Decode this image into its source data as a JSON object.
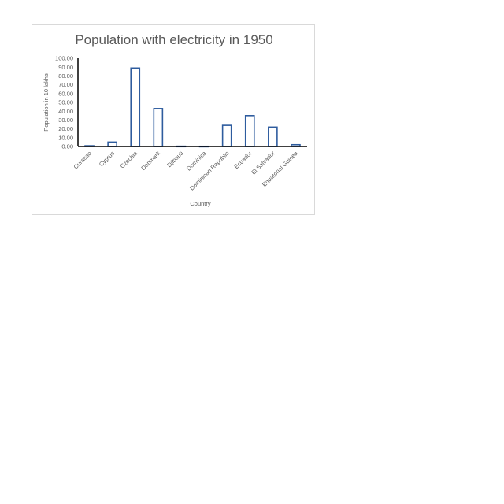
{
  "chart_data": {
    "type": "bar",
    "title": "Population with electricity in 1950",
    "xlabel": "Country",
    "ylabel": "Population in 10 lakhs",
    "categories": [
      "Curacao",
      "Cyprus",
      "Czechia",
      "Denmark",
      "Djibouti",
      "Dominica",
      "Dominican Republic",
      "Ecuador",
      "El Salvador",
      "Equatorial Guinea"
    ],
    "values": [
      0.8,
      5.0,
      89.0,
      43.0,
      0.3,
      0.2,
      24.0,
      35.0,
      22.0,
      2.0
    ],
    "ylim": [
      0,
      100
    ],
    "yticks": [
      "0.00",
      "10.00",
      "20.00",
      "30.00",
      "40.00",
      "50.00",
      "60.00",
      "70.00",
      "80.00",
      "90.00",
      "100.00"
    ],
    "grid": false,
    "legend": "none",
    "bar_outline_color": "#2e5c9e",
    "bar_fill_color": "#ffffff"
  }
}
